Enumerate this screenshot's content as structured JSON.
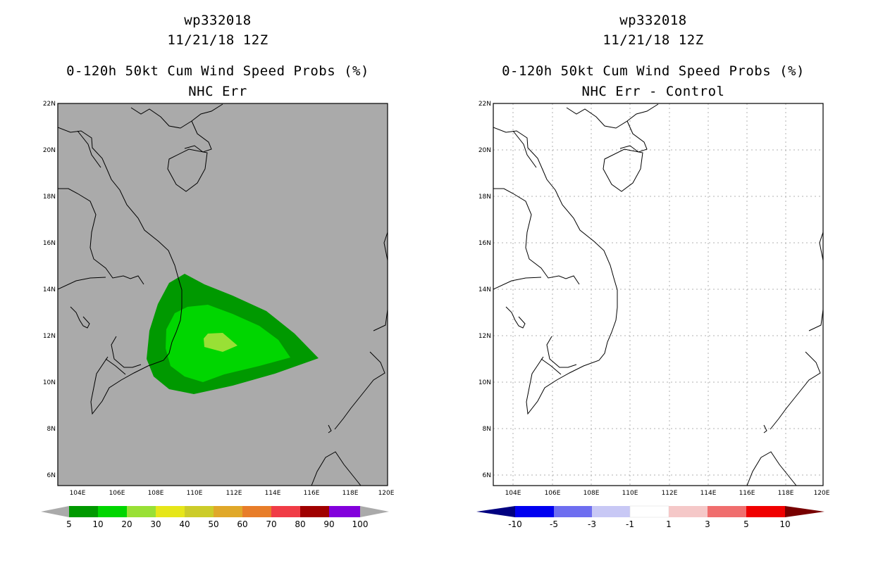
{
  "left": {
    "title_line1": "wp332018",
    "title_line2": "11/21/18 12Z",
    "title_line3": "0-120h 50kt Cum Wind Speed Probs (%)",
    "title_line4": "NHC Err",
    "lat_labels": [
      "22N",
      "20N",
      "18N",
      "16N",
      "14N",
      "12N",
      "10N",
      "8N",
      "6N"
    ],
    "lon_labels": [
      "104E",
      "106E",
      "108E",
      "110E",
      "112E",
      "114E",
      "116E",
      "118E",
      "120E"
    ],
    "colorbar": {
      "labels": [
        "5",
        "10",
        "20",
        "30",
        "40",
        "50",
        "60",
        "70",
        "80",
        "90",
        "100"
      ],
      "colors": [
        "#009900",
        "#00d600",
        "#99e035",
        "#e6e619",
        "#cccc29",
        "#e0a829",
        "#e87d29",
        "#f03c46",
        "#a00000",
        "#8200dc"
      ]
    }
  },
  "right": {
    "title_line1": "wp332018",
    "title_line2": "11/21/18 12Z",
    "title_line3": "0-120h 50kt Cum Wind Speed Probs (%)",
    "title_line4": "NHC Err - Control",
    "lat_labels": [
      "22N",
      "20N",
      "18N",
      "16N",
      "14N",
      "12N",
      "10N",
      "8N",
      "6N"
    ],
    "lon_labels": [
      "104E",
      "106E",
      "108E",
      "110E",
      "112E",
      "114E",
      "116E",
      "118E",
      "120E"
    ],
    "colorbar": {
      "labels": [
        "-10",
        "-5",
        "-3",
        "-1",
        "1",
        "3",
        "5",
        "10"
      ],
      "colors": [
        "#0000c8",
        "#0000f0",
        "#6e6ef0",
        "#c8c8f5",
        "#ffffff",
        "#f5c8c8",
        "#f06e6e",
        "#f00000",
        "#780000"
      ],
      "left_tip": "#000080"
    }
  },
  "colors": {
    "land_bg": "#aaaaaa",
    "prob_5": "#009900",
    "prob_10": "#00d600",
    "prob_20": "#99e035"
  }
}
